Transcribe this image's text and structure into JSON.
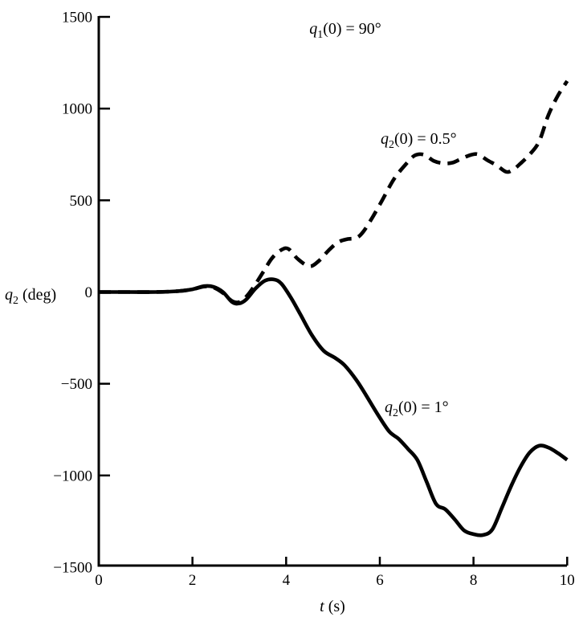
{
  "figure": {
    "background": "#ffffff",
    "ink_color": "#000000"
  },
  "labels": {
    "annotation": {
      "var": "q",
      "sub": "1",
      "rest": "(0) = 90°"
    },
    "dashed_curve": {
      "var": "q",
      "sub": "2",
      "rest": "(0) = 0.5°"
    },
    "solid_curve": {
      "var": "q",
      "sub": "2",
      "rest": "(0) = 1°"
    },
    "y_axis": {
      "var": "q",
      "sub": "2",
      "rest": " (deg)"
    },
    "x_axis": {
      "var": "t",
      "rest": " (s)"
    }
  },
  "axis": {
    "x_tick_labels": [
      "0",
      "2",
      "4",
      "6",
      "8",
      "10"
    ],
    "y_tick_labels": [
      "1500",
      "1000",
      "500",
      "0",
      "−500",
      "−1000",
      "−1500"
    ]
  },
  "chart_data": {
    "type": "line",
    "title": "q1(0) = 90°",
    "xlabel": "t (s)",
    "ylabel": "q2 (deg)",
    "xlim": [
      0,
      10
    ],
    "ylim": [
      -1500,
      1500
    ],
    "x_ticks": [
      0,
      2,
      4,
      6,
      8,
      10
    ],
    "y_ticks": [
      1500,
      1000,
      500,
      0,
      -500,
      -1000,
      -1500
    ],
    "grid": false,
    "legend_position": "inline-annotations",
    "series": [
      {
        "name": "q2(0) = 0.5°",
        "style": "dashed",
        "points": [
          [
            0,
            0
          ],
          [
            0.6,
            0
          ],
          [
            1.2,
            0
          ],
          [
            1.7,
            5
          ],
          [
            2.0,
            15
          ],
          [
            2.25,
            30
          ],
          [
            2.45,
            25
          ],
          [
            2.65,
            -5
          ],
          [
            2.85,
            -50
          ],
          [
            3.0,
            -55
          ],
          [
            3.15,
            -25
          ],
          [
            3.3,
            25
          ],
          [
            3.5,
            105
          ],
          [
            3.7,
            185
          ],
          [
            3.9,
            230
          ],
          [
            4.05,
            235
          ],
          [
            4.25,
            180
          ],
          [
            4.5,
            140
          ],
          [
            4.7,
            170
          ],
          [
            4.9,
            225
          ],
          [
            5.1,
            270
          ],
          [
            5.3,
            288
          ],
          [
            5.5,
            295
          ],
          [
            5.65,
            330
          ],
          [
            5.85,
            410
          ],
          [
            6.05,
            500
          ],
          [
            6.3,
            615
          ],
          [
            6.55,
            695
          ],
          [
            6.75,
            745
          ],
          [
            6.95,
            748
          ],
          [
            7.15,
            715
          ],
          [
            7.35,
            702
          ],
          [
            7.55,
            705
          ],
          [
            7.75,
            728
          ],
          [
            7.95,
            748
          ],
          [
            8.1,
            750
          ],
          [
            8.3,
            718
          ],
          [
            8.5,
            690
          ],
          [
            8.7,
            655
          ],
          [
            8.85,
            668
          ],
          [
            9.0,
            700
          ],
          [
            9.2,
            750
          ],
          [
            9.4,
            820
          ],
          [
            9.6,
            965
          ],
          [
            9.8,
            1070
          ],
          [
            10,
            1150
          ]
        ]
      },
      {
        "name": "q2(0) = 1°",
        "style": "solid",
        "points": [
          [
            0,
            0
          ],
          [
            0.6,
            0
          ],
          [
            1.2,
            0
          ],
          [
            1.7,
            5
          ],
          [
            2.0,
            15
          ],
          [
            2.25,
            32
          ],
          [
            2.45,
            28
          ],
          [
            2.65,
            0
          ],
          [
            2.85,
            -55
          ],
          [
            3.0,
            -62
          ],
          [
            3.15,
            -40
          ],
          [
            3.35,
            20
          ],
          [
            3.55,
            62
          ],
          [
            3.75,
            68
          ],
          [
            3.9,
            45
          ],
          [
            4.1,
            -30
          ],
          [
            4.3,
            -120
          ],
          [
            4.55,
            -235
          ],
          [
            4.8,
            -320
          ],
          [
            5.05,
            -360
          ],
          [
            5.25,
            -400
          ],
          [
            5.5,
            -480
          ],
          [
            5.7,
            -560
          ],
          [
            5.95,
            -665
          ],
          [
            6.2,
            -760
          ],
          [
            6.4,
            -800
          ],
          [
            6.6,
            -855
          ],
          [
            6.8,
            -915
          ],
          [
            7.0,
            -1035
          ],
          [
            7.2,
            -1155
          ],
          [
            7.4,
            -1185
          ],
          [
            7.6,
            -1240
          ],
          [
            7.8,
            -1300
          ],
          [
            8.0,
            -1320
          ],
          [
            8.2,
            -1325
          ],
          [
            8.4,
            -1295
          ],
          [
            8.6,
            -1180
          ],
          [
            8.8,
            -1060
          ],
          [
            9.0,
            -955
          ],
          [
            9.2,
            -875
          ],
          [
            9.4,
            -838
          ],
          [
            9.6,
            -848
          ],
          [
            9.8,
            -878
          ],
          [
            10,
            -915
          ]
        ]
      }
    ]
  }
}
